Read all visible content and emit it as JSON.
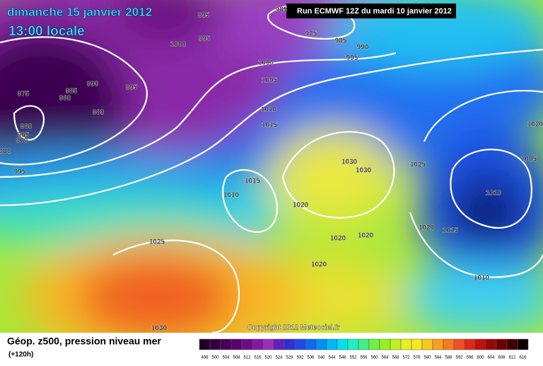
{
  "header": {
    "title": "dimanche 15 janvier 2012",
    "time": "13:00 locale",
    "run": "Run ECMWF 12Z du mardi 10 janvier 2012"
  },
  "isobar_labels": [
    "995",
    "985",
    "975",
    "985",
    "990",
    "995",
    "1000",
    "995",
    "1000",
    "990",
    "995",
    "975",
    "985",
    "980",
    "980",
    "960",
    "965",
    "970",
    "980",
    "995",
    "1005",
    "1010",
    "1015",
    "1030",
    "1030",
    "1025",
    "1015",
    "1010",
    "1020",
    "1020",
    "1020",
    "1020",
    "1015",
    "1010",
    "1005",
    "1020",
    "1025",
    "1020",
    "1010",
    "1030"
  ],
  "copyright": "Copyright 2012 Meteociel.fr",
  "legend": {
    "title": "Géop. z500, pression niveau mer",
    "lead": "(+120h)",
    "scale": [
      496,
      500,
      504,
      508,
      512,
      516,
      520,
      524,
      528,
      532,
      536,
      540,
      544,
      548,
      552,
      556,
      560,
      564,
      568,
      572,
      576,
      580,
      584,
      588,
      592,
      596,
      600,
      604,
      608,
      612,
      616
    ]
  }
}
